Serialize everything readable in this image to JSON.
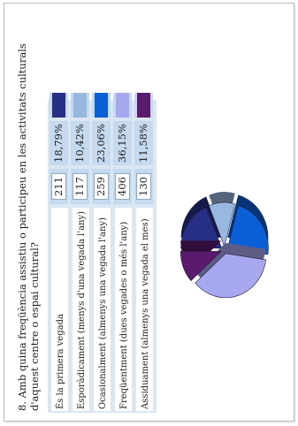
{
  "chart_data": {
    "type": "pie",
    "title": "8. Amb quina freqüència assistiu o participeu en les activitats culturals d'aquest centre o espai cultural?",
    "categories": [
      "És la primera vegada",
      "Esporàdicament (menys d'una vegada l'any)",
      "Ocasionalment (almenys una vegada l'any)",
      "Freqüentment (dues vegades o més l'any)",
      "Assiduament (almenys una vegada el mes)"
    ],
    "counts": [
      "211",
      "117",
      "259",
      "406",
      "130"
    ],
    "percents": [
      "18,79%",
      "10,42%",
      "23,06%",
      "36,15%",
      "11,58%"
    ],
    "values": [
      18.79,
      10.42,
      23.06,
      36.15,
      11.58
    ],
    "colors": [
      "#262f85",
      "#99b8e0",
      "#0a5fd6",
      "#a8a8f0",
      "#5c1a6e"
    ],
    "legend": "table-left"
  }
}
